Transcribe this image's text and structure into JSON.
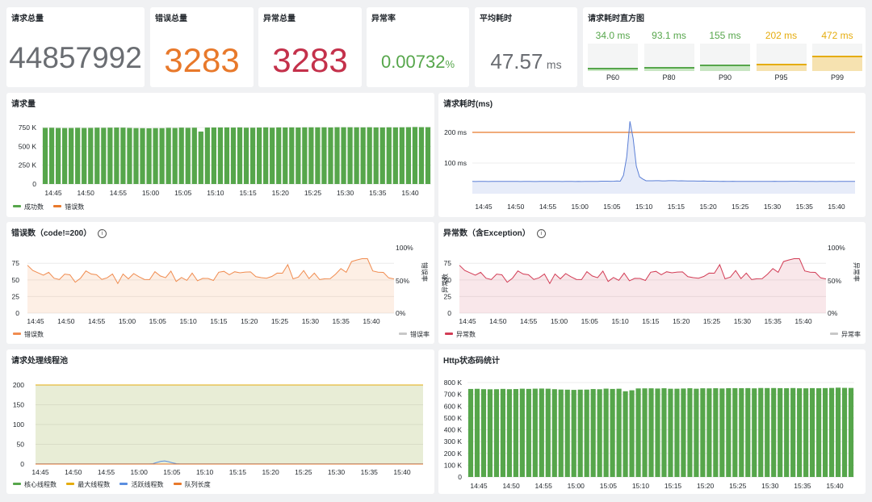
{
  "stats": {
    "total_requests": {
      "title": "请求总量",
      "value": "44857992",
      "color": "#6a6d72"
    },
    "total_errors": {
      "title": "错误总量",
      "value": "3283",
      "color": "#e8792b"
    },
    "total_exceptions": {
      "title": "异常总量",
      "value": "3283",
      "color": "#c4314b"
    },
    "exception_rate": {
      "title": "异常率",
      "value": "0.00732",
      "unit": "%",
      "color": "#56a64b"
    },
    "avg_latency": {
      "title": "平均耗时",
      "value": "47.57",
      "unit": "ms",
      "color": "#6a6d72"
    }
  },
  "latency_histogram": {
    "title": "请求耗时直方图",
    "items": [
      {
        "label": "P60",
        "value": "34.0 ms",
        "color": "#56a64b",
        "fraction": 0.07
      },
      {
        "label": "P80",
        "value": "93.1 ms",
        "color": "#56a64b",
        "fraction": 0.2
      },
      {
        "label": "P90",
        "value": "155 ms",
        "color": "#56a64b",
        "fraction": 0.33
      },
      {
        "label": "P95",
        "value": "202 ms",
        "color": "#e5ac0e",
        "fraction": 0.43
      },
      {
        "label": "P99",
        "value": "472 ms",
        "color": "#e5ac0e",
        "fraction": 1.0
      }
    ]
  },
  "time_ticks": [
    "14:45",
    "14:50",
    "14:55",
    "15:00",
    "15:05",
    "15:10",
    "15:15",
    "15:20",
    "15:25",
    "15:30",
    "15:35",
    "15:40"
  ],
  "panels": {
    "request_volume": {
      "title": "请求量",
      "y_ticks": [
        "750 K",
        "500 K",
        "250 K",
        "0"
      ],
      "legend": [
        {
          "name": "成功数",
          "color": "#56a64b"
        },
        {
          "name": "错误数",
          "color": "#e8792b"
        }
      ]
    },
    "request_latency": {
      "title": "请求耗时(ms)",
      "y_ticks": [
        "200 ms",
        "100 ms"
      ],
      "threshold_color": "#e8792b",
      "series_color": "#5b7fd6"
    },
    "errors": {
      "title": "错误数（code!=200）",
      "info": "i",
      "y_ticks": [
        "75",
        "50",
        "25",
        "0"
      ],
      "right_ticks": [
        "100%",
        "50%",
        "0%"
      ],
      "right_axis_label": "错误率",
      "legend_left": {
        "name": "错误数",
        "color": "#f08c50"
      },
      "legend_right": {
        "name": "错误率",
        "color": "#c8c8c8"
      }
    },
    "exceptions": {
      "title": "异常数（含Exception）",
      "info": "i",
      "y_ticks": [
        "75",
        "50",
        "25",
        "0"
      ],
      "left_axis_label": "异常数",
      "right_ticks": [
        "100%",
        "50%",
        "0%"
      ],
      "right_axis_label": "异常率",
      "legend_left": {
        "name": "异常数",
        "color": "#d23c55"
      },
      "legend_right": {
        "name": "异常率",
        "color": "#c8c8c8"
      }
    },
    "thread_pool": {
      "title": "请求处理线程池",
      "y_ticks": [
        "200",
        "150",
        "100",
        "50",
        "0"
      ],
      "legend": [
        {
          "name": "核心线程数",
          "color": "#56a64b"
        },
        {
          "name": "最大线程数",
          "color": "#e5ac0e"
        },
        {
          "name": "活跃线程数",
          "color": "#5b8fe0"
        },
        {
          "name": "队列长度",
          "color": "#e8792b"
        }
      ]
    },
    "http_status": {
      "title": "Http状态码统计",
      "y_ticks": [
        "800 K",
        "700 K",
        "600 K",
        "500 K",
        "400 K",
        "300 K",
        "200 K",
        "100 K",
        "0"
      ]
    }
  },
  "chart_data": [
    {
      "type": "bar",
      "title": "请求量",
      "x": [
        "14:45",
        "14:50",
        "14:55",
        "15:00",
        "15:05",
        "15:10",
        "15:15",
        "15:20",
        "15:25",
        "15:30",
        "15:35",
        "15:40"
      ],
      "ylim": [
        0,
        800000
      ],
      "series": [
        {
          "name": "成功数",
          "values": [
            745000,
            745000,
            748000,
            740000,
            748000,
            750000,
            750000,
            750000,
            752000,
            752000,
            753000,
            756000
          ]
        },
        {
          "name": "错误数",
          "values": [
            60,
            55,
            58,
            50,
            55,
            60,
            60,
            58,
            62,
            55,
            60,
            58
          ]
        }
      ]
    },
    {
      "type": "line",
      "title": "请求耗时(ms)",
      "x": [
        "14:45",
        "14:50",
        "14:55",
        "15:00",
        "15:05",
        "15:10",
        "15:15",
        "15:20",
        "15:25",
        "15:30",
        "15:35",
        "15:40"
      ],
      "ylim": [
        0,
        250
      ],
      "series": [
        {
          "values": [
            40,
            40,
            40,
            40,
            42,
            236,
            45,
            41,
            40,
            41,
            40,
            40
          ]
        }
      ],
      "threshold": 200
    },
    {
      "type": "line",
      "title": "错误数（code!=200）",
      "x": [
        "14:45",
        "14:50",
        "14:55",
        "15:00",
        "15:05",
        "15:10",
        "15:15",
        "15:20",
        "15:25",
        "15:30",
        "15:35",
        "15:40"
      ],
      "ylim": [
        0,
        100
      ],
      "series": [
        {
          "name": "错误数",
          "values": [
            72,
            50,
            56,
            49,
            60,
            52,
            56,
            54,
            57,
            58,
            80,
            58
          ]
        }
      ]
    },
    {
      "type": "line",
      "title": "异常数（含Exception）",
      "x": [
        "14:45",
        "14:50",
        "14:55",
        "15:00",
        "15:05",
        "15:10",
        "15:15",
        "15:20",
        "15:25",
        "15:30",
        "15:35",
        "15:40"
      ],
      "ylim": [
        0,
        100
      ],
      "series": [
        {
          "name": "异常数",
          "values": [
            72,
            50,
            56,
            49,
            60,
            52,
            56,
            54,
            57,
            58,
            80,
            58
          ]
        }
      ]
    },
    {
      "type": "line",
      "title": "请求处理线程池",
      "x": [
        "14:45",
        "14:50",
        "14:55",
        "15:00",
        "15:05",
        "15:10",
        "15:15",
        "15:20",
        "15:25",
        "15:30",
        "15:35",
        "15:40"
      ],
      "ylim": [
        0,
        200
      ],
      "series": [
        {
          "name": "核心线程数",
          "values": [
            200,
            200,
            200,
            200,
            200,
            200,
            200,
            200,
            200,
            200,
            200,
            200
          ]
        },
        {
          "name": "最大线程数",
          "values": [
            200,
            200,
            200,
            200,
            200,
            200,
            200,
            200,
            200,
            200,
            200,
            200
          ]
        },
        {
          "name": "活跃线程数",
          "values": [
            0,
            0,
            0,
            0,
            8,
            0,
            0,
            0,
            0,
            0,
            0,
            0
          ]
        },
        {
          "name": "队列长度",
          "values": [
            0,
            0,
            0,
            0,
            0,
            0,
            0,
            0,
            0,
            0,
            0,
            0
          ]
        }
      ]
    },
    {
      "type": "bar",
      "title": "Http状态码统计",
      "x": [
        "14:45",
        "14:50",
        "14:55",
        "15:00",
        "15:05",
        "15:10",
        "15:15",
        "15:20",
        "15:25",
        "15:30",
        "15:35",
        "15:40"
      ],
      "ylim": [
        0,
        800000
      ],
      "series": [
        {
          "values": [
            745000,
            745000,
            748000,
            738000,
            748000,
            750000,
            750000,
            750000,
            752000,
            752000,
            753000,
            756000
          ]
        }
      ]
    }
  ]
}
